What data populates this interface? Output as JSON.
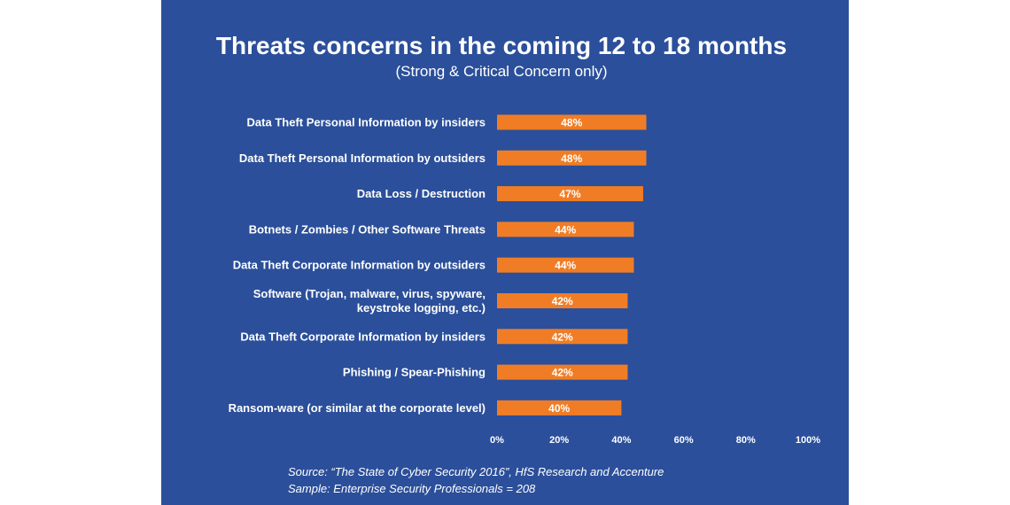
{
  "colors": {
    "background": "#2b4f9a",
    "bar": "#f07d25",
    "text": "#ffffff"
  },
  "source": {
    "line1": "Source: “The State of Cyber Security 2016”, HfS Research and Accenture",
    "line2": "Sample: Enterprise Security Professionals = 208"
  },
  "chart_data": {
    "type": "bar",
    "orientation": "horizontal",
    "title": "Threats concerns in the coming 12 to 18 months",
    "subtitle": "(Strong & Critical Concern only)",
    "categories": [
      [
        "Data Theft Personal Information by insiders"
      ],
      [
        "Data Theft Personal Information by outsiders"
      ],
      [
        "Data Loss / Destruction"
      ],
      [
        "Botnets / Zombies / Other Software Threats"
      ],
      [
        "Data Theft Corporate Information by outsiders"
      ],
      [
        "Software (Trojan, malware, virus, spyware,",
        "keystroke logging, etc.)"
      ],
      [
        "Data Theft Corporate Information by insiders"
      ],
      [
        "Phishing / Spear-Phishing"
      ],
      [
        "Ransom-ware (or similar at the corporate level)"
      ]
    ],
    "values": [
      48,
      48,
      47,
      44,
      44,
      42,
      42,
      42,
      40
    ],
    "value_labels": [
      "48%",
      "48%",
      "47%",
      "44%",
      "44%",
      "42%",
      "42%",
      "42%",
      "40%"
    ],
    "xlim": [
      0,
      100
    ],
    "xticks": [
      0,
      20,
      40,
      60,
      80,
      100
    ],
    "xtick_labels": [
      "0%",
      "20%",
      "40%",
      "60%",
      "80%",
      "100%"
    ],
    "grid": false,
    "legend": "none"
  }
}
